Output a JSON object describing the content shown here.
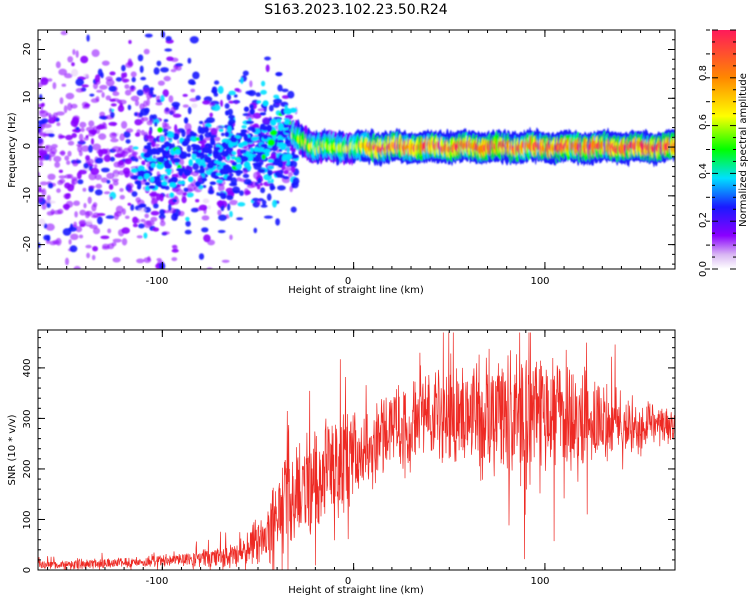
{
  "title": "S163.2023.102.23.50.R24",
  "colors": {
    "snr_line": "#ee2a24",
    "colormap": [
      "#ffffff",
      "#e4c9f6",
      "#8a00ff",
      "#1a1aff",
      "#00e0ff",
      "#00ff00",
      "#ffff00",
      "#ff8800",
      "#ff1a5a"
    ]
  },
  "chart_data": [
    {
      "type": "heatmap",
      "title": "",
      "xlabel": "Height of straight line (km)",
      "ylabel": "Frequency (Hz)",
      "xlim": [
        -165,
        168
      ],
      "ylim": [
        -25,
        24
      ],
      "xticks": [
        -100,
        0,
        100
      ],
      "yticks": [
        -20,
        -10,
        0,
        10,
        20
      ],
      "ridge": {
        "description_x_km": [
          -30,
          -20,
          0,
          10,
          50,
          100,
          168
        ],
        "center_hz": [
          2,
          0,
          0,
          0,
          0,
          0,
          0
        ],
        "peak_normalized_amplitude": [
          0.55,
          0.6,
          0.6,
          0.85,
          0.9,
          0.9,
          0.95
        ]
      },
      "scatter_region": {
        "x_range_km": [
          -165,
          -30
        ],
        "freq_spread_hz": [
          -25,
          24
        ]
      },
      "colorbar": {
        "label": "Normalized spectral amplitude",
        "range": [
          0.0,
          1.0
        ],
        "ticks": [
          "0.0",
          "0.2",
          "0.4",
          "0.6",
          "0.8"
        ]
      }
    },
    {
      "type": "line",
      "title": "",
      "xlabel": "Height of straight line (km)",
      "ylabel": "SNR (10 * v/v)",
      "xlim": [
        -165,
        168
      ],
      "ylim": [
        0,
        475
      ],
      "xticks": [
        -100,
        0,
        100
      ],
      "yticks": [
        0,
        100,
        200,
        300,
        400
      ],
      "series": [
        {
          "x_km": [
            -165,
            -120,
            -90,
            -60,
            -45,
            -35,
            -25,
            -15,
            0,
            10,
            20,
            30,
            40,
            50,
            60,
            70,
            80,
            90,
            100,
            110,
            120,
            130,
            140,
            150,
            160,
            168
          ],
          "mean": [
            10,
            15,
            20,
            30,
            70,
            150,
            160,
            190,
            220,
            250,
            280,
            290,
            300,
            310,
            320,
            300,
            310,
            290,
            300,
            310,
            300,
            300,
            290,
            280,
            285,
            280
          ],
          "amplitude": [
            8,
            10,
            12,
            25,
            60,
            90,
            100,
            110,
            90,
            80,
            80,
            90,
            100,
            110,
            110,
            120,
            120,
            120,
            110,
            110,
            100,
            80,
            60,
            50,
            40,
            30
          ],
          "max": [
            400,
            470
          ]
        }
      ]
    }
  ],
  "ticks_text": {
    "hx": [
      "-100",
      "0",
      "100"
    ],
    "hy": [
      "-20",
      "-10",
      "0",
      "10",
      "20"
    ],
    "cb": [
      "0.0",
      "0.2",
      "0.4",
      "0.6",
      "0.8"
    ],
    "sx": [
      "-100",
      "0",
      "100"
    ],
    "sy": [
      "0",
      "100",
      "200",
      "300",
      "400"
    ]
  }
}
